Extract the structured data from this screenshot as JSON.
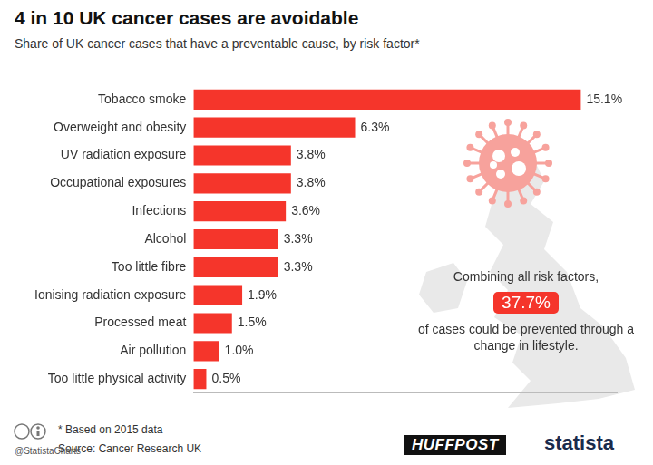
{
  "chart_data": {
    "type": "bar",
    "title": "4 in 10 UK cancer cases are avoidable",
    "subtitle": "Share of UK cancer cases that have a preventable cause, by risk factor*",
    "categories": [
      "Tobacco smoke",
      "Overweight and obesity",
      "UV radiation exposure",
      "Occupational exposures",
      "Infections",
      "Alcohol",
      "Too little fibre",
      "Ionising radiation exposure",
      "Processed meat",
      "Air pollution",
      "Too little physical activity"
    ],
    "values": [
      15.1,
      6.3,
      3.8,
      3.8,
      3.6,
      3.3,
      3.3,
      1.9,
      1.5,
      1.0,
      0.5
    ],
    "value_labels": [
      "15.1%",
      "6.3%",
      "3.8%",
      "3.8%",
      "3.6%",
      "3.3%",
      "3.3%",
      "1.9%",
      "1.5%",
      "1.0%",
      "0.5%"
    ],
    "color": "#f5352b",
    "xlim": [
      0,
      16.5
    ],
    "orientation": "horizontal",
    "grid": false,
    "tick_labels": "y",
    "data_labels": true,
    "annotation": {
      "before": "Combining all risk factors,",
      "highlight": "37.7%",
      "after": "of cases could be prevented through a change in lifestyle."
    },
    "footer": {
      "note": "* Based on 2015 data",
      "source": "Source: Cancer Research UK",
      "credit": "@StatistaCharts",
      "logos": [
        "HUFFPOST",
        "statista"
      ]
    }
  }
}
